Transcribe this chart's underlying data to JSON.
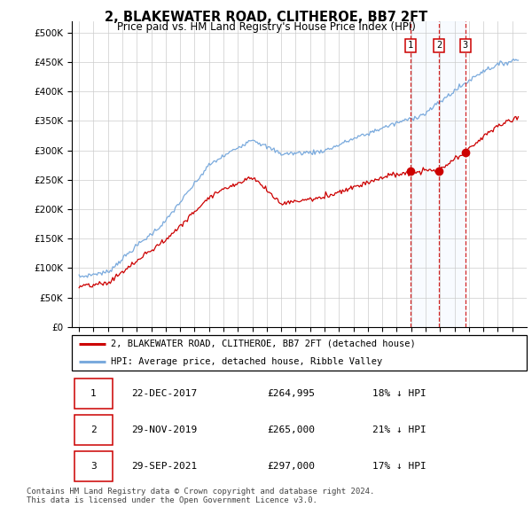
{
  "title": "2, BLAKEWATER ROAD, CLITHEROE, BB7 2FT",
  "subtitle": "Price paid vs. HM Land Registry's House Price Index (HPI)",
  "hpi_label": "HPI: Average price, detached house, Ribble Valley",
  "property_label": "2, BLAKEWATER ROAD, CLITHEROE, BB7 2FT (detached house)",
  "hpi_color": "#7aaadd",
  "property_color": "#cc0000",
  "vline_color": "#cc0000",
  "shade_color": "#ddeeff",
  "ylim": [
    0,
    520000
  ],
  "yticks": [
    0,
    50000,
    100000,
    150000,
    200000,
    250000,
    300000,
    350000,
    400000,
    450000,
    500000
  ],
  "xlim_start": 1994.5,
  "xlim_end": 2026.0,
  "transactions": [
    {
      "label": "1",
      "date": "22-DEC-2017",
      "price": 264995,
      "hpi_pct": "18% ↓ HPI",
      "x_year": 2017.97
    },
    {
      "label": "2",
      "date": "29-NOV-2019",
      "price": 265000,
      "hpi_pct": "21% ↓ HPI",
      "x_year": 2019.92
    },
    {
      "label": "3",
      "date": "29-SEP-2021",
      "price": 297000,
      "hpi_pct": "17% ↓ HPI",
      "x_year": 2021.75
    }
  ],
  "footer": "Contains HM Land Registry data © Crown copyright and database right 2024.\nThis data is licensed under the Open Government Licence v3.0.",
  "background_color": "#ffffff",
  "grid_color": "#cccccc"
}
